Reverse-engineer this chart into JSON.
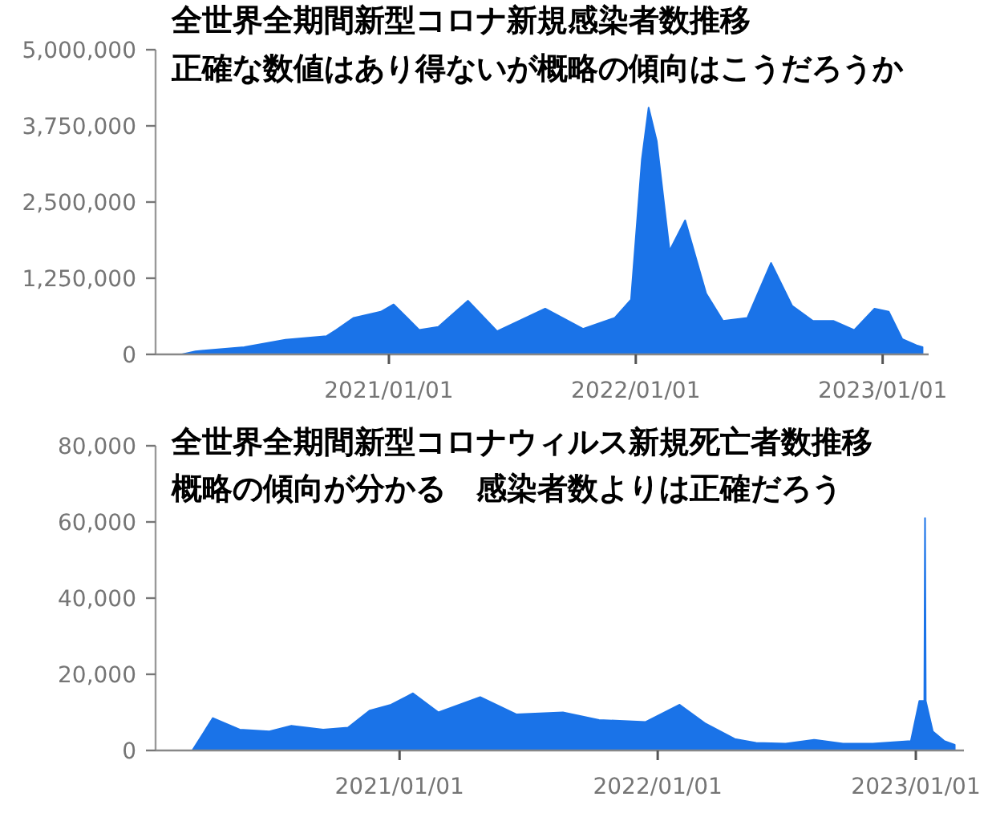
{
  "chart_data": [
    {
      "type": "area",
      "title": "全世界全期間新型コロナ新規感染者数推移",
      "subtitle": "正確な数値はあり得ないが概略の傾向はこうだろうか",
      "x": [
        "2020-01-22",
        "2020-03-01",
        "2020-03-21",
        "2020-06-01",
        "2020-08-01",
        "2020-10-01",
        "2020-10-15",
        "2020-11-10",
        "2020-12-20",
        "2021-01-08",
        "2021-02-15",
        "2021-03-15",
        "2021-04-28",
        "2021-06-10",
        "2021-08-20",
        "2021-10-15",
        "2021-12-01",
        "2021-12-25",
        "2022-01-10",
        "2022-01-20",
        "2022-02-01",
        "2022-02-20",
        "2022-03-15",
        "2022-04-15",
        "2022-05-10",
        "2022-06-15",
        "2022-07-20",
        "2022-08-20",
        "2022-09-20",
        "2022-10-20",
        "2022-11-20",
        "2022-12-20",
        "2023-01-10",
        "2023-01-30",
        "2023-02-20",
        "2023-03-01"
      ],
      "series": [
        {
          "color": "#1a73e8",
          "values": [
            0,
            0,
            50000,
            120000,
            240000,
            300000,
            400000,
            600000,
            700000,
            820000,
            400000,
            450000,
            880000,
            380000,
            750000,
            420000,
            600000,
            900000,
            3200000,
            4050000,
            3500000,
            1700000,
            2200000,
            1000000,
            550000,
            600000,
            1500000,
            800000,
            550000,
            550000,
            400000,
            750000,
            700000,
            250000,
            150000,
            120000
          ]
        }
      ],
      "xlim": [
        "2020-01-22",
        "2023-03-10"
      ],
      "xticks": [
        {
          "value": "2021-01-01",
          "label": "2021/01/01"
        },
        {
          "value": "2022-01-01",
          "label": "2022/01/01"
        },
        {
          "value": "2023-01-01",
          "label": "2023/01/01"
        }
      ],
      "ylim": [
        0,
        5000000
      ],
      "yticks": [
        {
          "value": 0,
          "label": "0"
        },
        {
          "value": 1250000,
          "label": "1,250,000"
        },
        {
          "value": 2500000,
          "label": "2,500,000"
        },
        {
          "value": 3750000,
          "label": "3,750,000"
        },
        {
          "value": 5000000,
          "label": "5,000,000"
        }
      ]
    },
    {
      "type": "area",
      "title": "全世界全期間新型コロナウィルス新規死亡者数推移",
      "subtitle": "概略の傾向が分かる　感染者数よりは正確だろう",
      "x": [
        "2020-01-22",
        "2020-03-14",
        "2020-04-12",
        "2020-05-20",
        "2020-07-01",
        "2020-08-01",
        "2020-09-15",
        "2020-10-20",
        "2020-11-20",
        "2020-12-20",
        "2021-01-20",
        "2021-02-25",
        "2021-04-25",
        "2021-06-15",
        "2021-08-20",
        "2021-10-10",
        "2021-12-15",
        "2022-02-01",
        "2022-03-10",
        "2022-04-20",
        "2022-05-20",
        "2022-07-01",
        "2022-08-10",
        "2022-09-20",
        "2022-11-01",
        "2022-12-25",
        "2023-01-06",
        "2023-01-13",
        "2023-01-14",
        "2023-01-15",
        "2023-01-25",
        "2023-02-10",
        "2023-02-25"
      ],
      "series": [
        {
          "color": "#1a73e8",
          "values": [
            0,
            0,
            8500,
            5500,
            5000,
            6500,
            5500,
            6000,
            10500,
            12000,
            15000,
            10000,
            14000,
            9500,
            10000,
            8000,
            7500,
            12000,
            7000,
            3000,
            2000,
            1800,
            2800,
            1800,
            1800,
            2500,
            13000,
            13000,
            61000,
            13000,
            5000,
            2500,
            1500
          ]
        }
      ],
      "xlim": [
        "2020-01-22",
        "2023-03-10"
      ],
      "xticks": [
        {
          "value": "2021-01-01",
          "label": "2021/01/01"
        },
        {
          "value": "2022-01-01",
          "label": "2022/01/01"
        },
        {
          "value": "2023-01-01",
          "label": "2023/01/01"
        }
      ],
      "ylim": [
        0,
        80000
      ],
      "yticks": [
        {
          "value": 0,
          "label": "0"
        },
        {
          "value": 20000,
          "label": "20,000"
        },
        {
          "value": 40000,
          "label": "40,000"
        },
        {
          "value": 60000,
          "label": "60,000"
        },
        {
          "value": 80000,
          "label": "80,000"
        }
      ]
    }
  ]
}
